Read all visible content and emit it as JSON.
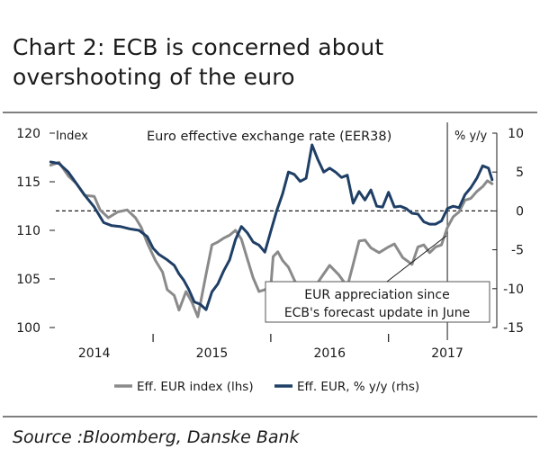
{
  "header": {
    "title_line1": "Chart 2: ECB is concerned about",
    "title_line2": "overshooting of the euro"
  },
  "source": "Source :Bloomberg, Danske Bank",
  "colors": {
    "eer_index": "#8a8a8a",
    "eer_yoy": "#1f3f66",
    "zero_line": "#1a1a1a",
    "frame": "#555555"
  },
  "chart_data": {
    "type": "line",
    "title": "Euro effective exchange rate (EER38)",
    "left_axis": {
      "label": "Index",
      "ylim": [
        100,
        120
      ],
      "ticks": [
        100,
        105,
        110,
        115,
        120
      ]
    },
    "right_axis": {
      "label": "% y/y",
      "ylim": [
        -15,
        10
      ],
      "ticks": [
        -15,
        -10,
        -5,
        0,
        5,
        10
      ]
    },
    "x_axis": {
      "xlim": [
        2013.62,
        2017.42
      ],
      "year_labels": [
        "2014",
        "2015",
        "2016",
        "2017"
      ],
      "year_label_positions": [
        2014.0,
        2015.0,
        2016.0,
        2017.0
      ],
      "year_boundaries": [
        2014.5,
        2015.5,
        2016.5
      ]
    },
    "reference_line_x": 2017.0,
    "annotation": {
      "line1": "EUR appreciation since",
      "line2": "ECB's forecast update in June"
    },
    "legend": {
      "position": "bottom-center",
      "items": [
        "Eff. EUR index (lhs)",
        "Eff. EUR, % y/y (rhs)"
      ]
    },
    "series": [
      {
        "name": "Eff. EUR index (lhs)",
        "axis": "left",
        "x": [
          2013.63,
          2013.7,
          2013.78,
          2013.85,
          2013.92,
          2014.0,
          2014.05,
          2014.12,
          2014.2,
          2014.28,
          2014.35,
          2014.4,
          2014.45,
          2014.52,
          2014.58,
          2014.62,
          2014.68,
          2014.72,
          2014.78,
          2014.83,
          2014.88,
          2014.95,
          2015.0,
          2015.05,
          2015.1,
          2015.15,
          2015.2,
          2015.25,
          2015.3,
          2015.35,
          2015.4,
          2015.45,
          2015.5,
          2015.52,
          2015.56,
          2015.6,
          2015.65,
          2015.7,
          2015.78,
          2015.85,
          2015.92,
          2016.0,
          2016.08,
          2016.15,
          2016.2,
          2016.25,
          2016.3,
          2016.35,
          2016.42,
          2016.5,
          2016.55,
          2016.62,
          2016.7,
          2016.75,
          2016.8,
          2016.85,
          2016.9,
          2016.95,
          2017.0,
          2017.05,
          2017.1,
          2017.15,
          2017.2,
          2017.25,
          2017.3,
          2017.34,
          2017.38
        ],
        "values": [
          116.7,
          117.0,
          115.6,
          114.8,
          113.6,
          113.5,
          112.1,
          111.3,
          111.9,
          112.1,
          111.3,
          110.3,
          108.7,
          106.9,
          105.7,
          103.9,
          103.3,
          101.8,
          103.7,
          102.6,
          101.1,
          105.5,
          108.5,
          108.8,
          109.2,
          109.5,
          110.0,
          109.1,
          107.1,
          105.1,
          103.7,
          103.9,
          104.2,
          107.3,
          107.8,
          106.9,
          106.2,
          104.9,
          103.0,
          103.7,
          105.0,
          106.4,
          105.4,
          104.2,
          106.5,
          108.9,
          109.0,
          108.2,
          107.7,
          108.3,
          108.6,
          107.2,
          106.5,
          108.3,
          108.5,
          107.7,
          108.3,
          108.5,
          110.3,
          111.4,
          111.9,
          113.1,
          113.3,
          114.0,
          114.5,
          115.1,
          114.8
        ]
      },
      {
        "name": "Eff. EUR, % y/y (rhs)",
        "axis": "right",
        "x": [
          2013.63,
          2013.7,
          2013.78,
          2013.85,
          2013.92,
          2014.0,
          2014.08,
          2014.15,
          2014.22,
          2014.3,
          2014.38,
          2014.45,
          2014.5,
          2014.55,
          2014.62,
          2014.68,
          2014.72,
          2014.76,
          2014.8,
          2014.85,
          2014.9,
          2014.95,
          2015.0,
          2015.05,
          2015.1,
          2015.15,
          2015.2,
          2015.25,
          2015.3,
          2015.35,
          2015.4,
          2015.45,
          2015.5,
          2015.55,
          2015.6,
          2015.65,
          2015.7,
          2015.75,
          2015.8,
          2015.85,
          2015.9,
          2015.95,
          2016.0,
          2016.05,
          2016.1,
          2016.15,
          2016.2,
          2016.25,
          2016.3,
          2016.35,
          2016.4,
          2016.45,
          2016.5,
          2016.55,
          2016.6,
          2016.65,
          2016.7,
          2016.75,
          2016.8,
          2016.85,
          2016.9,
          2016.95,
          2017.0,
          2017.05,
          2017.1,
          2017.15,
          2017.2,
          2017.25,
          2017.3,
          2017.35,
          2017.38
        ],
        "values": [
          6.3,
          6.1,
          5.0,
          3.5,
          2.0,
          0.5,
          -1.5,
          -1.9,
          -2.0,
          -2.3,
          -2.5,
          -3.3,
          -4.8,
          -5.6,
          -6.3,
          -7.0,
          -8.1,
          -8.9,
          -10.0,
          -11.7,
          -12.0,
          -12.7,
          -10.4,
          -9.4,
          -7.7,
          -6.3,
          -3.7,
          -2.0,
          -2.8,
          -4.0,
          -4.4,
          -5.3,
          -2.6,
          0.0,
          2.2,
          5.0,
          4.7,
          3.8,
          4.2,
          8.5,
          6.6,
          5.0,
          5.5,
          5.0,
          4.3,
          4.6,
          1.0,
          2.5,
          1.4,
          2.7,
          0.6,
          0.5,
          2.4,
          0.5,
          0.6,
          0.3,
          -0.3,
          -0.4,
          -1.4,
          -1.7,
          -1.7,
          -1.3,
          0.3,
          0.6,
          0.4,
          2.1,
          3.0,
          4.2,
          5.8,
          5.5,
          4.0
        ]
      }
    ]
  }
}
